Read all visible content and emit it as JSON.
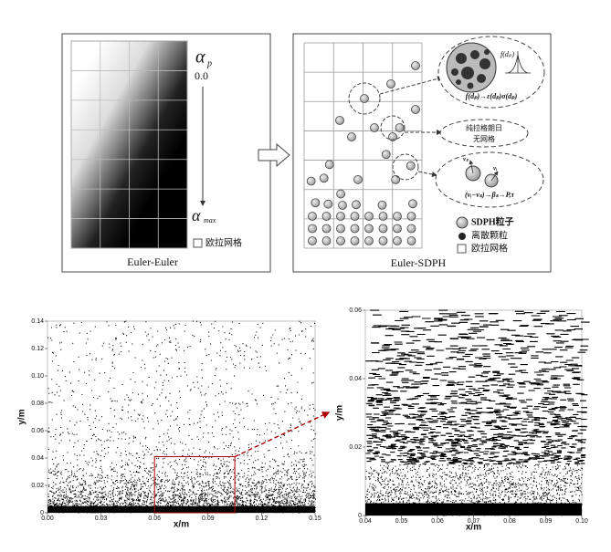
{
  "euler_euler": {
    "title": "Euler-Euler",
    "alpha_top": "α",
    "alpha_top_sub": "p",
    "alpha_top_value": "0.0",
    "alpha_bottom": "α",
    "alpha_bottom_sub": "max",
    "legend_grid": "欧拉网格"
  },
  "euler_sdph": {
    "title": "Euler-SDPH",
    "size_dist": "f(dₚ)",
    "size_map": "f(dₚ)→ε(dₚ)σ(dₚ)",
    "callout_line1": "纯拉格朗日",
    "callout_line2": "无网格",
    "vel_s": "vₛ",
    "vel_i": "vᵢ",
    "drag_map": "(vᵢ−vₛ)→βₛ→P,τ",
    "legend_sdph": "SDPH粒子",
    "legend_particle": "离散颗粒",
    "legend_grid": "欧拉网格"
  },
  "chart_data": [
    {
      "type": "scatter",
      "x_label": "x/m",
      "y_label": "y/m",
      "xlim": [
        0,
        0.15
      ],
      "ylim": [
        0,
        0.14
      ],
      "xticks": [
        {
          "value": 0,
          "label": "0.00"
        },
        0.03,
        0.06,
        0.09,
        0.12,
        0.15
      ],
      "yticks": [
        0,
        0.02,
        0.04,
        0.06,
        0.08,
        {
          "value": 0.1,
          "label": "0.10"
        },
        0.12,
        0.14
      ],
      "zoom_region": {
        "x": [
          0.06,
          0.105
        ],
        "y": [
          0,
          0.041
        ]
      }
    },
    {
      "type": "scatter",
      "x_label": "x/m",
      "y_label": "y/m",
      "xlim": [
        0.04,
        0.1
      ],
      "ylim": [
        0,
        0.06
      ],
      "xticks": [
        0.04,
        0.05,
        0.06,
        0.07,
        0.08,
        0.09,
        {
          "value": 0.1,
          "label": "0.10"
        }
      ],
      "yticks": [
        0,
        0.02,
        0.04,
        0.06
      ]
    }
  ]
}
